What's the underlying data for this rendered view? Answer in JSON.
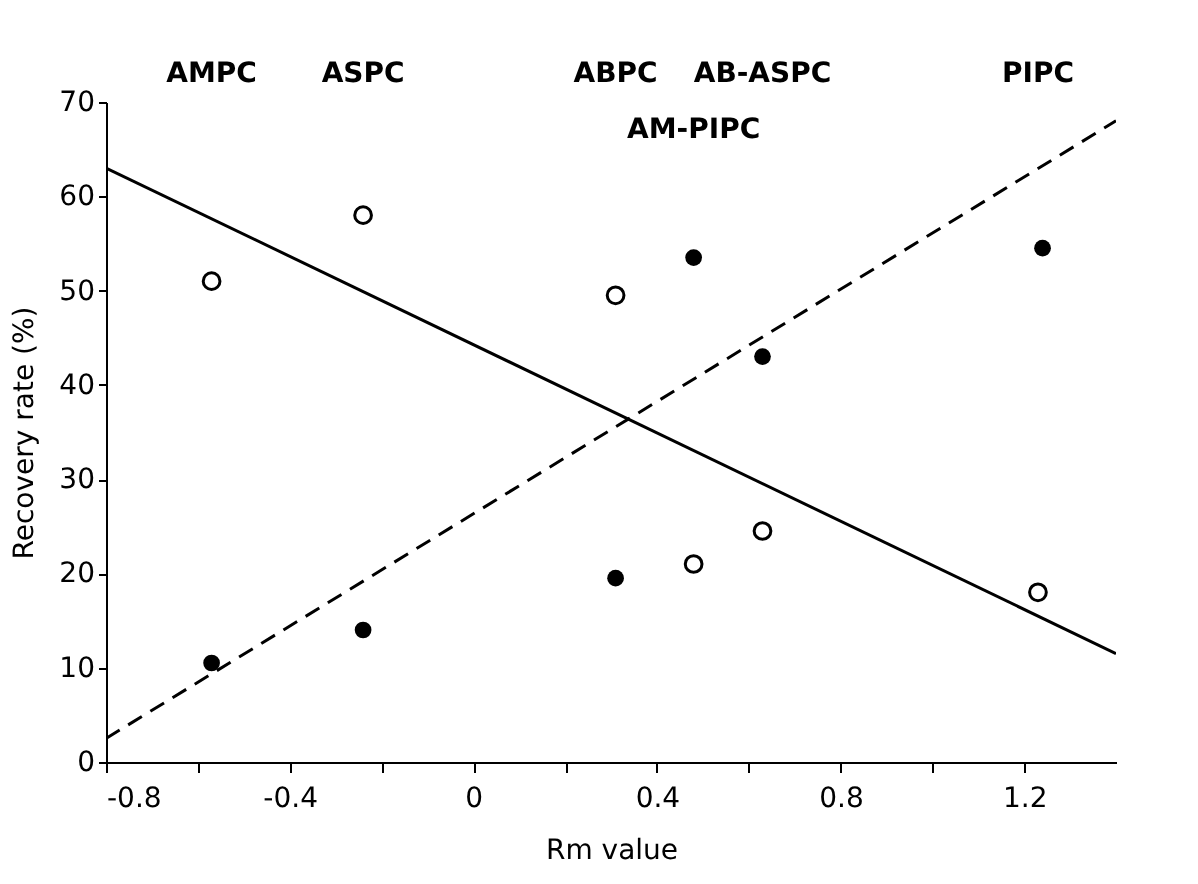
{
  "chart_data": {
    "type": "scatter",
    "xlabel": "Rm value",
    "ylabel": "Recovery rate (%)",
    "xlim": [
      -0.8,
      1.4
    ],
    "ylim": [
      0,
      70
    ],
    "xticks": [
      -0.8,
      {
        "value": -0.6,
        "label": null
      },
      -0.4,
      {
        "value": -0.2,
        "label": null
      },
      0,
      {
        "value": 0.2,
        "label": null
      },
      0.4,
      {
        "value": 0.6,
        "label": null
      },
      0.8,
      {
        "value": 1.0,
        "label": null
      },
      1.2
    ],
    "yticks": [
      0,
      10,
      20,
      30,
      40,
      50,
      60,
      70
    ],
    "grid": false,
    "series": [
      {
        "marker": "circle",
        "color": "#000000",
        "x": [
          -0.57,
          -0.24,
          0.31,
          0.48,
          0.63,
          1.23
        ],
        "values": [
          51,
          58,
          49.5,
          21,
          24.5,
          18
        ]
      },
      {
        "marker": "circle",
        "color": "#000000",
        "x": [
          -0.57,
          -0.24,
          0.31,
          0.48,
          0.63,
          1.24
        ],
        "values": [
          10.5,
          14,
          19.5,
          53.5,
          43,
          54.5
        ]
      },
      {
        "type": "line",
        "line_style": "solid",
        "color": "#000000",
        "x": [
          -0.8,
          1.4
        ],
        "values": [
          63,
          11.5
        ]
      },
      {
        "type": "line",
        "line_style": "dashed",
        "color": "#000000",
        "x": [
          -0.8,
          1.4
        ],
        "values": [
          2.5,
          68
        ]
      }
    ],
    "annotations": [
      "AMPC",
      "ASPC",
      "ABPC",
      "AM-PIPC",
      "AB-ASPC",
      "PIPC"
    ]
  }
}
